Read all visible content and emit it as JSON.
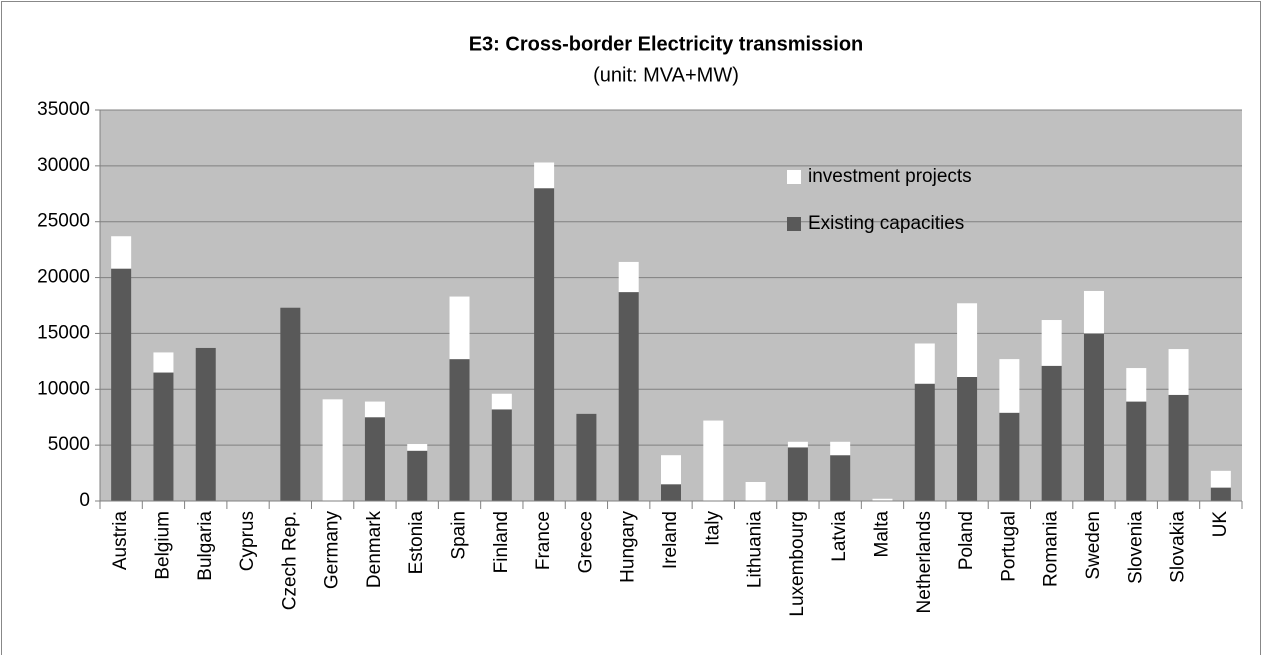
{
  "chart_data": {
    "type": "stacked_bar",
    "title": "E3: Cross-border Electricity transmission",
    "subtitle": "(unit: MVA+MW)",
    "categories": [
      "Austria",
      "Belgium",
      "Bulgaria",
      "Cyprus",
      "Czech Rep.",
      "Germany",
      "Denmark",
      "Estonia",
      "Spain",
      "Finland",
      "France",
      "Greece",
      "Hungary",
      "Ireland",
      "Italy",
      "Lithuania",
      "Luxembourg",
      "Latvia",
      "Malta",
      "Netherlands",
      "Poland",
      "Portugal",
      "Romania",
      "Sweden",
      "Slovenia",
      "Slovakia",
      "UK"
    ],
    "series": [
      {
        "name": "Existing capacities",
        "color": "#595959",
        "values": [
          20800,
          11500,
          13700,
          0,
          17300,
          0,
          7500,
          4500,
          12700,
          8200,
          28000,
          7800,
          18700,
          1500,
          0,
          0,
          4800,
          4100,
          0,
          10500,
          11100,
          7900,
          12100,
          15000,
          8900,
          9500,
          1200
        ]
      },
      {
        "name": "investment projects",
        "color": "#ffffff",
        "values": [
          2900,
          1800,
          0,
          0,
          0,
          9100,
          1400,
          600,
          5600,
          1400,
          2300,
          0,
          2700,
          2600,
          7200,
          1700,
          500,
          1200,
          200,
          3600,
          6600,
          4800,
          4100,
          3800,
          3000,
          4100,
          1500
        ]
      }
    ],
    "ylim": [
      0,
      35000
    ],
    "yticks": [
      0,
      5000,
      10000,
      15000,
      20000,
      25000,
      30000,
      35000
    ],
    "grid": true
  }
}
